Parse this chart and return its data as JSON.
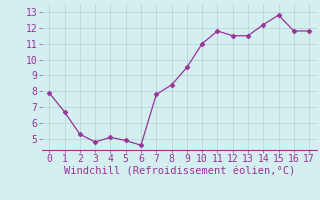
{
  "x": [
    0,
    1,
    2,
    3,
    4,
    5,
    6,
    7,
    8,
    9,
    10,
    11,
    12,
    13,
    14,
    15,
    16,
    17
  ],
  "y": [
    7.9,
    6.7,
    5.3,
    4.8,
    5.1,
    4.9,
    4.6,
    7.8,
    8.4,
    9.5,
    11.0,
    11.8,
    11.5,
    11.5,
    12.2,
    12.8,
    11.8,
    11.8
  ],
  "line_color": "#993399",
  "marker_color": "#993399",
  "bg_color": "#d4efef",
  "grid_color": "#b8d8d8",
  "xlabel": "Windchill (Refroidissement éolien,°C)",
  "xlabel_color": "#993399",
  "xlabel_fontsize": 7.5,
  "tick_color": "#993399",
  "tick_fontsize": 7,
  "xlim": [
    -0.5,
    17.5
  ],
  "ylim": [
    4.3,
    13.5
  ],
  "xticks": [
    0,
    1,
    2,
    3,
    4,
    5,
    6,
    7,
    8,
    9,
    10,
    11,
    12,
    13,
    14,
    15,
    16,
    17
  ],
  "yticks": [
    5,
    6,
    7,
    8,
    9,
    10,
    11,
    12,
    13
  ]
}
